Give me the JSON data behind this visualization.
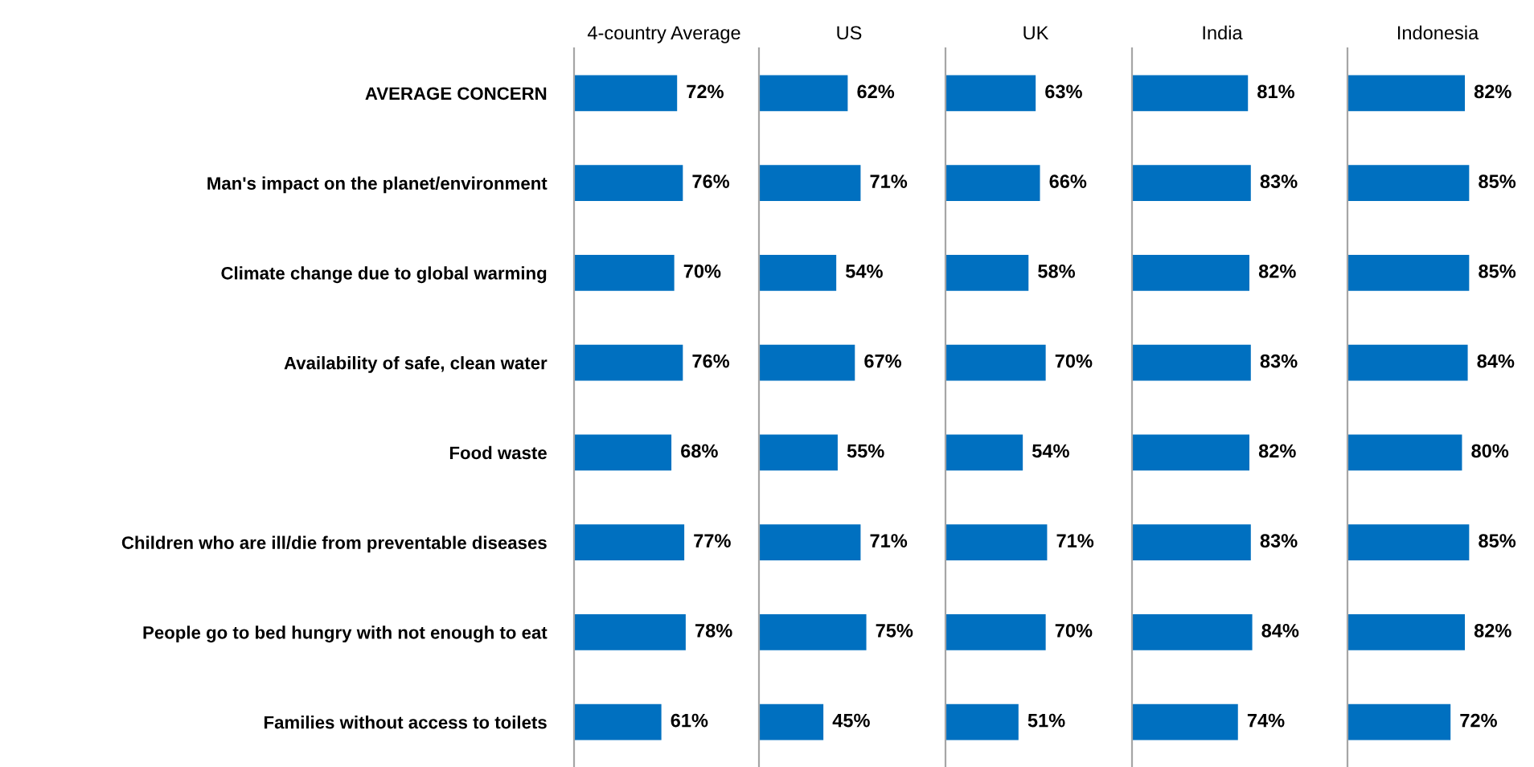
{
  "chart_data": [
    {
      "type": "bar",
      "orientation": "horizontal",
      "title": "4-country Average",
      "categories": [
        "AVERAGE CONCERN",
        "Man's impact on the planet/environment",
        "Climate change due to global warming",
        "Availability of safe, clean water",
        "Food waste",
        "Children who are ill/die from preventable diseases",
        "People go to bed hungry with not enough to eat",
        "Families without access to toilets"
      ],
      "values": [
        72,
        76,
        70,
        76,
        68,
        77,
        78,
        61
      ],
      "value_labels": [
        "72%",
        "76%",
        "70%",
        "76%",
        "68%",
        "77%",
        "78%",
        "61%"
      ],
      "color": "#0070c0",
      "tick_labels": "y",
      "grid": false
    },
    {
      "type": "bar",
      "orientation": "horizontal",
      "title": "US",
      "categories": [
        null,
        null,
        null,
        null,
        null,
        null,
        null,
        null
      ],
      "values": [
        62,
        71,
        54,
        67,
        55,
        71,
        75,
        45
      ],
      "value_labels": [
        "62%",
        "71%",
        "54%",
        "67%",
        "55%",
        "71%",
        "75%",
        "45%"
      ],
      "color": "#0070c0",
      "tick_labels": false,
      "grid": false
    },
    {
      "type": "bar",
      "orientation": "horizontal",
      "title": "UK",
      "categories": [
        null,
        null,
        null,
        null,
        null,
        null,
        null,
        null
      ],
      "values": [
        63,
        66,
        58,
        70,
        54,
        71,
        70,
        51
      ],
      "value_labels": [
        "63%",
        "66%",
        "58%",
        "70%",
        "54%",
        "71%",
        "70%",
        "51%"
      ],
      "color": "#0070c0",
      "tick_labels": false,
      "grid": false
    },
    {
      "type": "bar",
      "orientation": "horizontal",
      "title": "India",
      "categories": [
        null,
        null,
        null,
        null,
        null,
        null,
        null,
        null
      ],
      "values": [
        81,
        83,
        82,
        83,
        82,
        83,
        84,
        74
      ],
      "value_labels": [
        "81%",
        "83%",
        "82%",
        "83%",
        "82%",
        "83%",
        "84%",
        "74%"
      ],
      "color": "#0070c0",
      "tick_labels": false,
      "grid": false
    },
    {
      "type": "bar",
      "orientation": "horizontal",
      "title": "Indonesia",
      "categories": [
        null,
        null,
        null,
        null,
        null,
        null,
        null,
        null
      ],
      "values": [
        82,
        85,
        85,
        84,
        80,
        85,
        82,
        72
      ],
      "value_labels": [
        "82%",
        "85%",
        "85%",
        "84%",
        "80%",
        "85%",
        "82%",
        "72%"
      ],
      "color": "#0070c0",
      "tick_labels": false,
      "grid": false
    }
  ]
}
